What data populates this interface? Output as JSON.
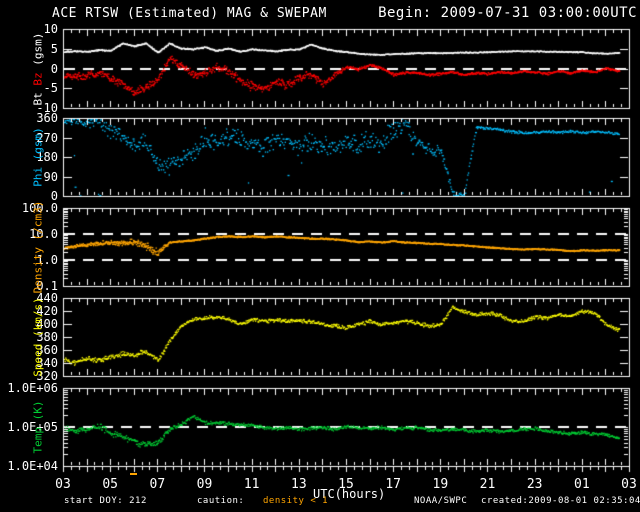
{
  "header": {
    "title_left": "ACE RTSW (Estimated) MAG & SWEPAM",
    "title_right": "Begin: 2009-07-31 03:00:00UTC"
  },
  "x_axis": {
    "label": "UTC(hours)",
    "tick_hours": [
      3,
      5,
      7,
      9,
      11,
      13,
      15,
      17,
      19,
      21,
      23,
      25,
      27
    ],
    "tick_labels": [
      "03",
      "05",
      "07",
      "09",
      "11",
      "13",
      "15",
      "17",
      "19",
      "21",
      "23",
      "01",
      "03"
    ],
    "range_hours": [
      3,
      27
    ],
    "data_end_hour": 26.58
  },
  "footer": {
    "start_doy": "start DOY: 212",
    "caution_label": "caution:",
    "caution_value": "density < 1",
    "agency": "NOAA/SWPC",
    "created": "created:2009-08-01 02:35:04UTC"
  },
  "colors": {
    "background": "#000000",
    "frame": "#FFFFFF",
    "bt": "#FFFFFF",
    "bz": "#FF0000",
    "phi": "#00BFFF",
    "density": "#FFA500",
    "speed": "#FFFF00",
    "temp": "#00CC33",
    "reference_dash": "#FFFFFF",
    "caution_marker": "#FFA500"
  },
  "chart_data": {
    "type": "scatter",
    "title": "ACE RTSW (Estimated) MAG & SWEPAM",
    "x_label": "UTC(hours)",
    "x_range_hours": [
      3,
      27
    ],
    "sample_hours": [
      3,
      3.5,
      4,
      4.5,
      5,
      5.5,
      6,
      6.5,
      7,
      7.5,
      8,
      8.5,
      9,
      9.5,
      10,
      10.5,
      11,
      11.5,
      12,
      12.5,
      13,
      13.5,
      14,
      14.5,
      15,
      15.5,
      16,
      16.5,
      17,
      17.5,
      18,
      18.5,
      19,
      19.5,
      20,
      20.5,
      21,
      21.5,
      22,
      22.5,
      23,
      23.5,
      24,
      24.5,
      25,
      25.5,
      26,
      26.5,
      27
    ],
    "panels": [
      {
        "id": "mag",
        "y_label": "Bt Bz (gsm)",
        "y_label_parts": [
          [
            "Bt ",
            "bt"
          ],
          [
            "Bz",
            "bz"
          ],
          [
            " (gsm)",
            "bt"
          ]
        ],
        "scale": "linear",
        "ylim": [
          -10,
          10
        ],
        "yticks": [
          [
            10,
            "10"
          ],
          [
            5,
            "5"
          ],
          [
            0,
            "0"
          ],
          [
            -5,
            "-5"
          ],
          [
            -10,
            "-10"
          ]
        ],
        "ref_lines": [
          0
        ],
        "series": [
          {
            "name": "Bt",
            "color_key": "bt",
            "values": [
              4.3,
              4.5,
              4.4,
              4.8,
              4.6,
              6.5,
              5.8,
              6.5,
              4.2,
              6.5,
              5.2,
              5.0,
              5.5,
              4.6,
              5.2,
              4.4,
              5.0,
              4.7,
              4.5,
              4.9,
              5.0,
              6.2,
              5.2,
              4.6,
              4.3,
              3.9,
              3.7,
              3.6,
              3.8,
              3.9,
              4.0,
              4.1,
              4.0,
              4.1,
              4.2,
              4.2,
              4.3,
              4.4,
              4.5,
              4.5,
              4.5,
              4.4,
              4.4,
              4.3,
              4.3,
              4.0,
              3.9,
              4.1,
              4.2
            ]
          },
          {
            "name": "Bz",
            "color_key": "bz",
            "values": [
              -1.5,
              -2.0,
              -1.8,
              -1.0,
              -2.5,
              -3.5,
              -6.0,
              -4.5,
              -2.5,
              2.5,
              1.0,
              -1.5,
              -1.0,
              0.5,
              -0.5,
              -3.0,
              -4.5,
              -5.0,
              -3.0,
              -4.0,
              -2.0,
              -1.5,
              -4.0,
              -1.5,
              0.5,
              0.0,
              1.0,
              0.3,
              -1.5,
              -0.8,
              -1.0,
              -1.5,
              -1.2,
              -0.8,
              -1.5,
              -1.0,
              -1.2,
              -0.8,
              -1.0,
              -0.5,
              -0.8,
              -1.2,
              -0.5,
              -1.0,
              -0.3,
              -0.8,
              0.2,
              -0.5,
              0.3
            ]
          }
        ]
      },
      {
        "id": "phi",
        "y_label": "Phi (gsm)",
        "scale": "linear",
        "ylim": [
          0,
          360
        ],
        "yticks": [
          [
            360,
            "360"
          ],
          [
            270,
            "270"
          ],
          [
            180,
            "180"
          ],
          [
            90,
            "90"
          ],
          [
            0,
            "0"
          ]
        ],
        "ref_lines": [],
        "series": [
          {
            "name": "Phi",
            "color_key": "phi",
            "values": [
              345,
              350,
              335,
              355,
              300,
              280,
              230,
              255,
              150,
              135,
              170,
              200,
              270,
              240,
              285,
              260,
              250,
              230,
              265,
              250,
              230,
              255,
              240,
              220,
              250,
              235,
              260,
              240,
              310,
              340,
              250,
              220,
              210,
              15,
              10,
              320,
              315,
              310,
              300,
              295,
              295,
              300,
              295,
              300,
              295,
              300,
              295,
              290,
              295
            ]
          }
        ]
      },
      {
        "id": "density",
        "y_label": "Density (/cm3)",
        "scale": "log",
        "ylim": [
          0.1,
          100
        ],
        "yticks": [
          [
            100,
            "100.0"
          ],
          [
            10,
            "10.0"
          ],
          [
            1,
            "1.0"
          ],
          [
            0.1,
            "0.1"
          ]
        ],
        "ref_lines": [
          10,
          1
        ],
        "series": [
          {
            "name": "Density",
            "color_key": "density",
            "values": [
              3.0,
              3.5,
              4.0,
              4.5,
              5.0,
              4.5,
              5.5,
              3.5,
              2.0,
              5.0,
              5.5,
              6.0,
              7.0,
              8.0,
              8.5,
              8.0,
              8.5,
              8.0,
              8.5,
              8.0,
              7.5,
              7.0,
              7.0,
              6.5,
              6.0,
              5.0,
              5.5,
              5.0,
              5.5,
              5.0,
              4.8,
              4.5,
              4.3,
              4.0,
              3.8,
              3.5,
              3.2,
              3.0,
              2.8,
              2.7,
              2.8,
              2.7,
              2.6,
              2.3,
              2.5,
              2.4,
              2.5,
              2.5,
              2.5
            ]
          }
        ]
      },
      {
        "id": "speed",
        "y_label": "Speed (km/s)",
        "scale": "linear",
        "ylim": [
          320,
          440
        ],
        "yticks": [
          [
            440,
            "440"
          ],
          [
            420,
            "420"
          ],
          [
            400,
            "400"
          ],
          [
            380,
            "380"
          ],
          [
            360,
            "360"
          ],
          [
            340,
            "340"
          ],
          [
            320,
            "320"
          ]
        ],
        "ref_lines": [],
        "series": [
          {
            "name": "Speed",
            "color_key": "speed",
            "values": [
              345,
              342,
              348,
              345,
              350,
              355,
              352,
              360,
              345,
              375,
              398,
              408,
              410,
              412,
              408,
              400,
              408,
              405,
              407,
              405,
              406,
              404,
              400,
              398,
              395,
              400,
              405,
              400,
              403,
              405,
              402,
              398,
              400,
              427,
              420,
              415,
              418,
              415,
              405,
              405,
              412,
              410,
              415,
              412,
              420,
              418,
              400,
              392,
              395
            ]
          }
        ]
      },
      {
        "id": "temp",
        "y_label": "Temp (K)",
        "scale": "log",
        "ylim": [
          10000,
          1000000
        ],
        "yticks": [
          [
            1000000,
            "1.0E+06"
          ],
          [
            100000,
            "1.0E+05"
          ],
          [
            10000,
            "1.0E+04"
          ]
        ],
        "ref_lines": [
          100000
        ],
        "series": [
          {
            "name": "Temp",
            "color_key": "temp",
            "values": [
              100000,
              80000,
              90000,
              110000,
              70000,
              60000,
              45000,
              35000,
              40000,
              90000,
              120000,
              200000,
              130000,
              130000,
              125000,
              120000,
              115000,
              100000,
              95000,
              100000,
              90000,
              95000,
              100000,
              90000,
              105000,
              100000,
              95000,
              100000,
              90000,
              95000,
              100000,
              90000,
              85000,
              90000,
              85000,
              80000,
              85000,
              80000,
              85000,
              90000,
              95000,
              80000,
              75000,
              70000,
              75000,
              70000,
              65000,
              55000,
              60000
            ]
          }
        ]
      }
    ]
  }
}
